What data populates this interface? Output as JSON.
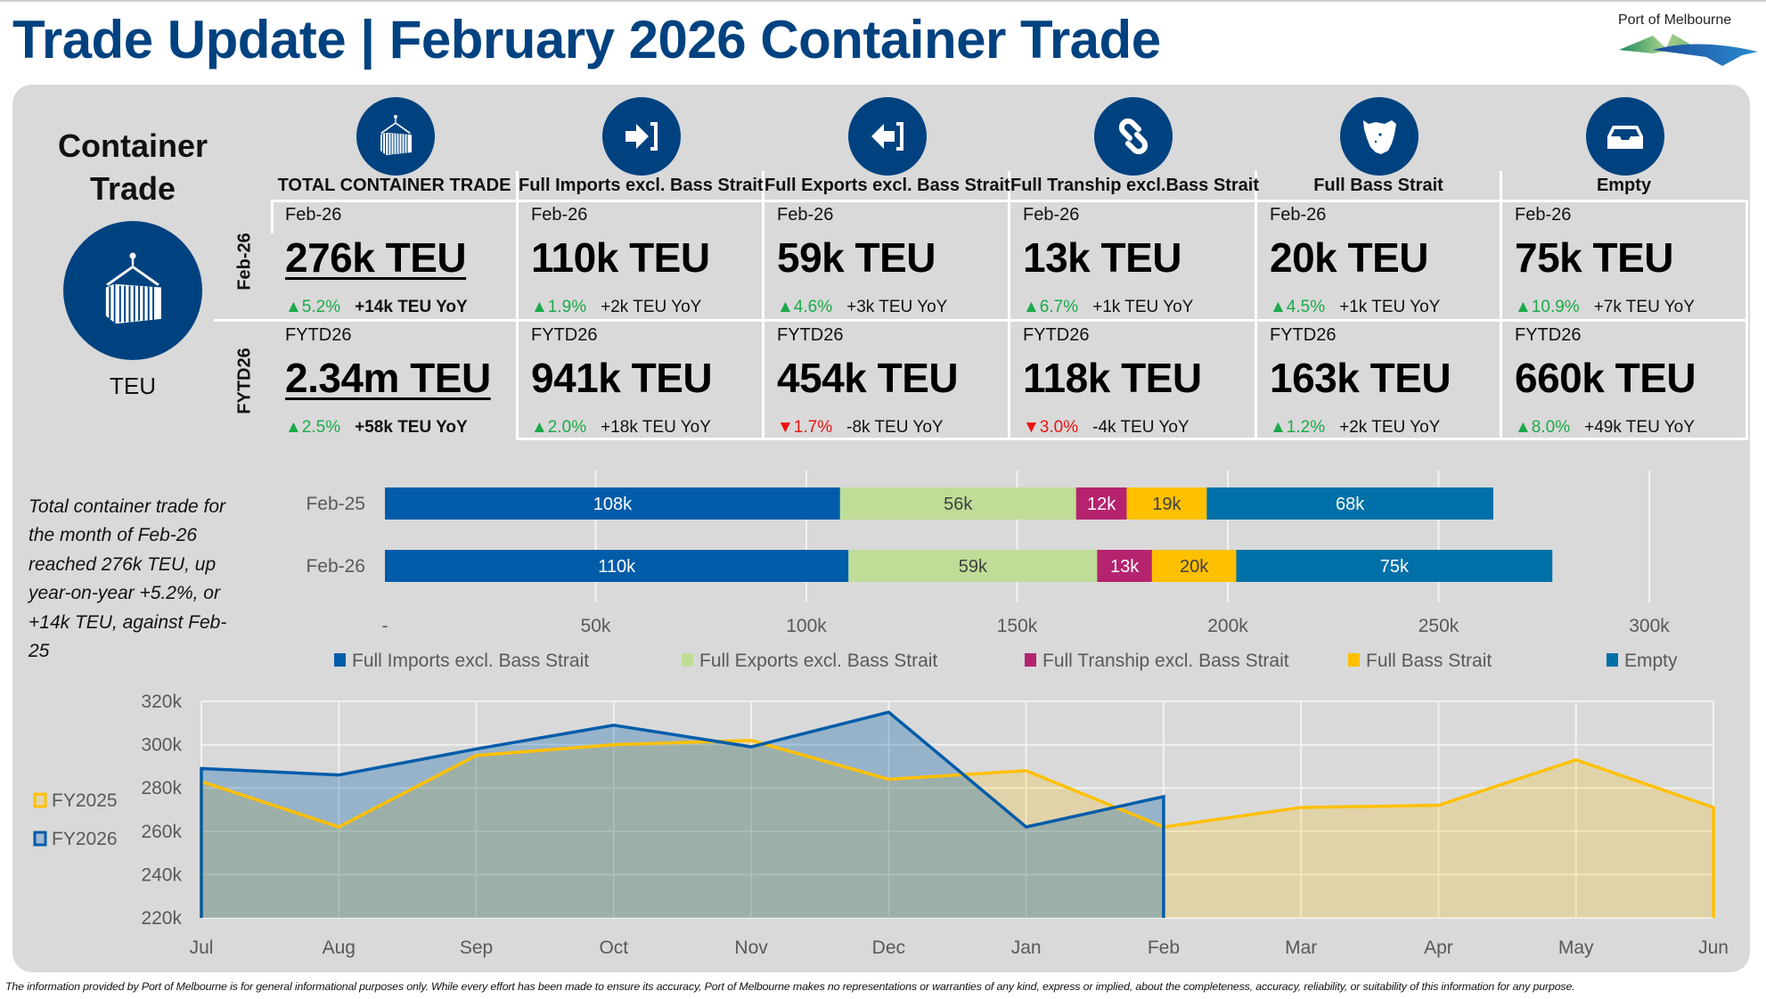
{
  "header": {
    "title": "Trade Update | February 2026 Container Trade",
    "logo_text": "Port of Melbourne"
  },
  "colors": {
    "brand_navy": "#004280",
    "up": "#1aaa4a",
    "down": "#ee1111",
    "imports": "#005ca9",
    "exports": "#c0dd97",
    "tranship": "#b5236f",
    "bass_strait": "#ffc000",
    "empty": "#0070a8",
    "fy2025": "#ffc000",
    "fy2026": "#005ca9"
  },
  "sidebar": {
    "heading_line1": "Container",
    "heading_line2": "Trade",
    "icon": "container-crane-icon",
    "unit": "TEU"
  },
  "row_labels": [
    "Feb-26",
    "FYTD26"
  ],
  "columns": [
    {
      "icon": "container-crane-icon",
      "header": "TOTAL CONTAINER TRADE",
      "month": {
        "period": "Feb-26",
        "value": "276k TEU",
        "pct": "5.2%",
        "direction": "up",
        "yoy": "+14k TEU YoY"
      },
      "fytd": {
        "period": "FYTD26",
        "value": "2.34m TEU",
        "pct": "2.5%",
        "direction": "up",
        "yoy": "+58k TEU YoY"
      }
    },
    {
      "icon": "import-arrow-icon",
      "header": "Full Imports excl. Bass Strait",
      "month": {
        "period": "Feb-26",
        "value": "110k TEU",
        "pct": "1.9%",
        "direction": "up",
        "yoy": "+2k TEU YoY"
      },
      "fytd": {
        "period": "FYTD26",
        "value": "941k TEU",
        "pct": "2.0%",
        "direction": "up",
        "yoy": "+18k TEU YoY"
      }
    },
    {
      "icon": "export-arrow-icon",
      "header": "Full Exports excl. Bass Strait",
      "month": {
        "period": "Feb-26",
        "value": "59k TEU",
        "pct": "4.6%",
        "direction": "up",
        "yoy": "+3k TEU YoY"
      },
      "fytd": {
        "period": "FYTD26",
        "value": "454k TEU",
        "pct": "1.7%",
        "direction": "down",
        "yoy": "-8k TEU YoY"
      }
    },
    {
      "icon": "chain-link-icon",
      "header": "Full Tranship excl.Bass Strait",
      "month": {
        "period": "Feb-26",
        "value": "13k TEU",
        "pct": "6.7%",
        "direction": "up",
        "yoy": "+1k TEU YoY"
      },
      "fytd": {
        "period": "FYTD26",
        "value": "118k TEU",
        "pct": "3.0%",
        "direction": "down",
        "yoy": "-4k TEU YoY"
      }
    },
    {
      "icon": "tasmania-map-icon",
      "header": "Full Bass Strait",
      "month": {
        "period": "Feb-26",
        "value": "20k TEU",
        "pct": "4.5%",
        "direction": "up",
        "yoy": "+1k TEU YoY"
      },
      "fytd": {
        "period": "FYTD26",
        "value": "163k TEU",
        "pct": "1.2%",
        "direction": "up",
        "yoy": "+2k TEU YoY"
      }
    },
    {
      "icon": "empty-tray-icon",
      "header": "Empty",
      "month": {
        "period": "Feb-26",
        "value": "75k TEU",
        "pct": "10.9%",
        "direction": "up",
        "yoy": "+7k TEU YoY"
      },
      "fytd": {
        "period": "FYTD26",
        "value": "660k TEU",
        "pct": "8.0%",
        "direction": "up",
        "yoy": "+49k TEU YoY"
      }
    }
  ],
  "summary_text": "Total container trade for the month of Feb-26 reached 276k TEU, up year-on-year +5.2%, or +14k TEU, against Feb-25",
  "chart_data": [
    {
      "type": "bar",
      "orientation": "horizontal",
      "stacked": true,
      "title": "",
      "categories": [
        "Feb-25",
        "Feb-26"
      ],
      "series": [
        {
          "name": "Full Imports excl. Bass Strait",
          "values": [
            108,
            110
          ],
          "labels": [
            "108k",
            "110k"
          ],
          "color": "#005ca9",
          "label_color": "#ffffff"
        },
        {
          "name": "Full Exports excl. Bass Strait",
          "values": [
            56,
            59
          ],
          "labels": [
            "56k",
            "59k"
          ],
          "color": "#c0dd97",
          "label_color": "#404040"
        },
        {
          "name": "Full Tranship excl. Bass Strait",
          "values": [
            12,
            13
          ],
          "labels": [
            "12k",
            "13k"
          ],
          "color": "#b5236f",
          "label_color": "#ffffff"
        },
        {
          "name": "Full Bass Strait",
          "values": [
            19,
            20
          ],
          "labels": [
            "19k",
            "20k"
          ],
          "color": "#ffc000",
          "label_color": "#404040"
        },
        {
          "name": "Empty",
          "values": [
            68,
            75
          ],
          "labels": [
            "68k",
            "75k"
          ],
          "color": "#0070a8",
          "label_color": "#ffffff"
        }
      ],
      "units": "thousand TEU",
      "xlim": [
        0,
        300
      ],
      "xticks": [
        0,
        50,
        100,
        150,
        200,
        250,
        300
      ],
      "xtick_labels": [
        "-",
        "50k",
        "100k",
        "150k",
        "200k",
        "250k",
        "300k"
      ],
      "xlabel": "",
      "ylabel": "",
      "grid": true,
      "legend": "bottom"
    },
    {
      "type": "area",
      "title": "",
      "x": [
        "Jul",
        "Aug",
        "Sep",
        "Oct",
        "Nov",
        "Dec",
        "Jan",
        "Feb",
        "Mar",
        "Apr",
        "May",
        "Jun"
      ],
      "series": [
        {
          "name": "FY2025",
          "values": [
            283,
            262,
            295,
            300,
            302,
            284,
            288,
            262,
            271,
            272,
            293,
            271
          ],
          "color": "#ffc000",
          "fill": "#e2d6ad"
        },
        {
          "name": "FY2026",
          "values": [
            289,
            286,
            298,
            309,
            299,
            315,
            262,
            276
          ],
          "color": "#005ca9",
          "fill": "#a3b8cf"
        }
      ],
      "units": "thousand TEU",
      "ylim": [
        220,
        320
      ],
      "yticks": [
        220,
        240,
        260,
        280,
        300,
        320
      ],
      "ytick_labels": [
        "220k",
        "240k",
        "260k",
        "280k",
        "300k",
        "320k"
      ],
      "xlabel": "",
      "ylabel": "",
      "grid": true,
      "legend": "left"
    }
  ],
  "footer": {
    "disclaimer": "The information provided by Port of Melbourne is for general informational purposes only. While every effort has been made to ensure its accuracy, Port of Melbourne makes no representations or warranties of any kind, express or implied, about the completeness, accuracy, reliability, or suitability of this information for any purpose."
  }
}
